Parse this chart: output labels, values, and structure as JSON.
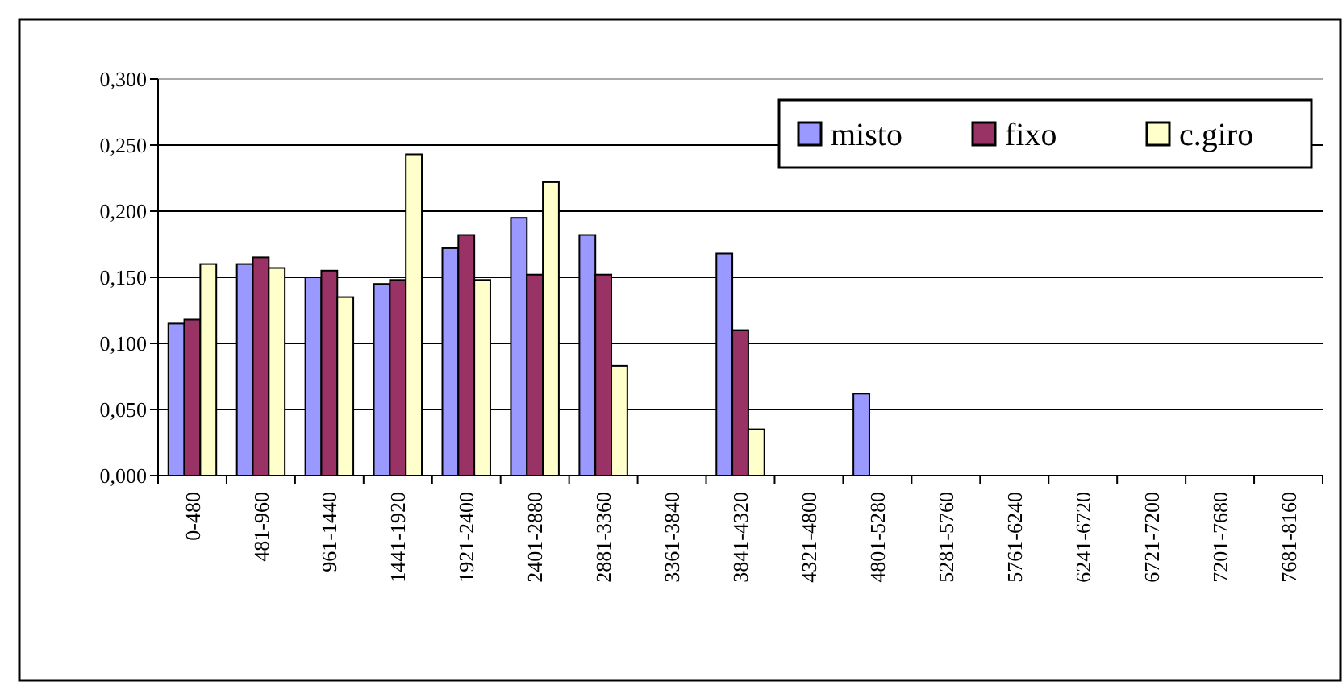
{
  "chart_data": {
    "type": "bar",
    "categories": [
      "0-480",
      "481-960",
      "961-1440",
      "1441-1920",
      "1921-2400",
      "2401-2880",
      "2881-3360",
      "3361-3840",
      "3841-4320",
      "4321-4800",
      "4801-5280",
      "5281-5760",
      "5761-6240",
      "6241-6720",
      "6721-7200",
      "7201-7680",
      "7681-8160"
    ],
    "series": [
      {
        "name": "misto",
        "color": "#9999ff",
        "values": [
          0.115,
          0.16,
          0.15,
          0.145,
          0.172,
          0.195,
          0.182,
          0,
          0.168,
          0,
          0.062,
          0,
          0,
          0,
          0,
          0,
          0
        ]
      },
      {
        "name": "fixo",
        "color": "#993366",
        "values": [
          0.118,
          0.165,
          0.155,
          0.148,
          0.182,
          0.152,
          0.152,
          0,
          0.11,
          0,
          0,
          0,
          0,
          0,
          0,
          0,
          0
        ]
      },
      {
        "name": "c.giro",
        "color": "#ffffcc",
        "values": [
          0.16,
          0.157,
          0.135,
          0.243,
          0.148,
          0.222,
          0.083,
          0,
          0.035,
          0,
          0,
          0,
          0,
          0,
          0,
          0,
          0
        ]
      }
    ],
    "ylim": [
      0,
      0.3
    ],
    "yticks": [
      {
        "value": 0,
        "label": "0,000"
      },
      {
        "value": 0.05,
        "label": "0,050"
      },
      {
        "value": 0.1,
        "label": "0,100"
      },
      {
        "value": 0.15,
        "label": "0,150"
      },
      {
        "value": 0.2,
        "label": "0,200"
      },
      {
        "value": 0.25,
        "label": "0,250"
      },
      {
        "value": 0.3,
        "label": "0,300"
      }
    ],
    "grid": "y",
    "legend": "top right"
  }
}
